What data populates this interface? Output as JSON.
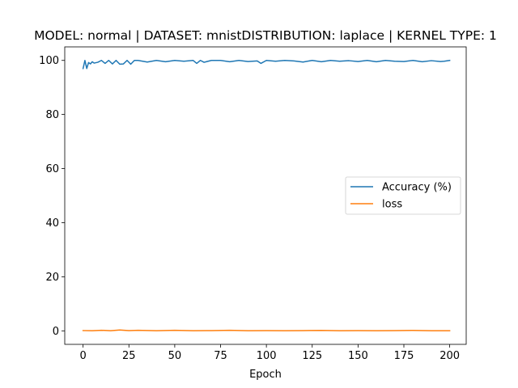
{
  "chart_data": {
    "type": "line",
    "title": "MODEL: normal | DATASET: mnistDISTRIBUTION: laplace | KERNEL TYPE: 1",
    "xlabel": "Epoch",
    "ylabel": "",
    "xlim": [
      -10,
      209
    ],
    "ylim": [
      -5,
      105
    ],
    "xticks": [
      0,
      25,
      50,
      75,
      100,
      125,
      150,
      175,
      200
    ],
    "yticks": [
      0,
      20,
      40,
      60,
      80,
      100
    ],
    "grid": false,
    "legend_position": "center-right",
    "series": [
      {
        "name": "Accuracy (%)",
        "color": "#1f77b4",
        "x": [
          0,
          1,
          2,
          3,
          4,
          5,
          6,
          8,
          10,
          12,
          14,
          16,
          18,
          20,
          22,
          24,
          26,
          28,
          30,
          35,
          40,
          45,
          50,
          55,
          60,
          62,
          64,
          66,
          70,
          75,
          80,
          85,
          90,
          95,
          97,
          100,
          105,
          110,
          115,
          120,
          125,
          130,
          135,
          140,
          145,
          150,
          155,
          160,
          165,
          170,
          175,
          180,
          185,
          190,
          195,
          197,
          200
        ],
        "y": [
          97.0,
          100.0,
          97.0,
          99.2,
          98.7,
          99.5,
          99.0,
          99.3,
          100.0,
          98.9,
          100.0,
          98.7,
          100.0,
          98.6,
          98.7,
          100.0,
          98.6,
          100.0,
          100.0,
          99.4,
          100.0,
          99.5,
          100.0,
          99.7,
          100.0,
          98.9,
          100.0,
          99.3,
          100.0,
          100.0,
          99.5,
          100.0,
          99.6,
          99.8,
          98.9,
          100.0,
          99.7,
          100.0,
          99.8,
          99.4,
          100.0,
          99.5,
          100.0,
          99.7,
          99.9,
          99.6,
          100.0,
          99.5,
          100.0,
          99.7,
          99.6,
          100.0,
          99.5,
          99.9,
          99.6,
          99.7,
          100.0
        ]
      },
      {
        "name": "loss",
        "color": "#ff7f0e",
        "x": [
          0,
          5,
          10,
          15,
          20,
          25,
          30,
          40,
          50,
          60,
          70,
          80,
          90,
          100,
          110,
          120,
          130,
          140,
          150,
          160,
          170,
          180,
          190,
          200
        ],
        "y": [
          0.1,
          0.05,
          0.2,
          0.05,
          0.3,
          0.1,
          0.2,
          0.05,
          0.2,
          0.05,
          0.1,
          0.2,
          0.05,
          0.1,
          0.05,
          0.1,
          0.15,
          0.05,
          0.1,
          0.05,
          0.1,
          0.15,
          0.05,
          0.05
        ]
      }
    ]
  }
}
